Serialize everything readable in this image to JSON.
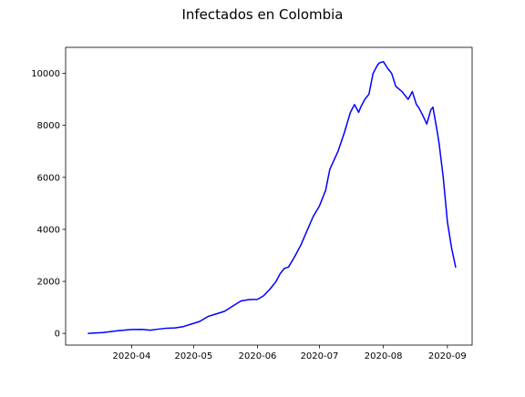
{
  "chart_data": {
    "type": "line",
    "title": "Infectados en Colombia",
    "xlabel": "",
    "ylabel": "",
    "x_ticks": [
      "2020-04",
      "2020-05",
      "2020-06",
      "2020-07",
      "2020-08",
      "2020-09"
    ],
    "y_ticks": [
      "0",
      "2000",
      "4000",
      "6000",
      "8000",
      "10000"
    ],
    "xlim": [
      "2020-02-29",
      "2020-09-13"
    ],
    "ylim": [
      -450,
      11000
    ],
    "grid": false,
    "legend": false,
    "series": [
      {
        "color": "#0000ff",
        "x": [
          "2020-03-11",
          "2020-03-18",
          "2020-03-25",
          "2020-04-01",
          "2020-04-06",
          "2020-04-10",
          "2020-04-14",
          "2020-04-18",
          "2020-04-22",
          "2020-04-26",
          "2020-04-30",
          "2020-05-04",
          "2020-05-08",
          "2020-05-12",
          "2020-05-16",
          "2020-05-20",
          "2020-05-24",
          "2020-05-28",
          "2020-06-01",
          "2020-06-04",
          "2020-06-07",
          "2020-06-10",
          "2020-06-12",
          "2020-06-14",
          "2020-06-16",
          "2020-06-19",
          "2020-06-22",
          "2020-06-25",
          "2020-06-28",
          "2020-07-01",
          "2020-07-04",
          "2020-07-06",
          "2020-07-08",
          "2020-07-10",
          "2020-07-13",
          "2020-07-16",
          "2020-07-18",
          "2020-07-20",
          "2020-07-21",
          "2020-07-23",
          "2020-07-25",
          "2020-07-27",
          "2020-07-29",
          "2020-07-30",
          "2020-08-01",
          "2020-08-03",
          "2020-08-05",
          "2020-08-07",
          "2020-08-10",
          "2020-08-13",
          "2020-08-15",
          "2020-08-17",
          "2020-08-18",
          "2020-08-20",
          "2020-08-22",
          "2020-08-24",
          "2020-08-25",
          "2020-08-27",
          "2020-08-28",
          "2020-08-30",
          "2020-09-01",
          "2020-09-03",
          "2020-09-05"
        ],
        "y": [
          0,
          30,
          100,
          150,
          155,
          125,
          165,
          200,
          210,
          260,
          360,
          460,
          650,
          750,
          850,
          1050,
          1250,
          1300,
          1310,
          1450,
          1700,
          2000,
          2300,
          2500,
          2550,
          2950,
          3400,
          3950,
          4500,
          4900,
          5500,
          6300,
          6650,
          7000,
          7700,
          8500,
          8800,
          8500,
          8700,
          9000,
          9200,
          10000,
          10300,
          10400,
          10450,
          10200,
          10000,
          9500,
          9300,
          9000,
          9300,
          8800,
          8700,
          8400,
          8050,
          8600,
          8700,
          7800,
          7300,
          6000,
          4300,
          3300,
          2550
        ]
      }
    ]
  }
}
